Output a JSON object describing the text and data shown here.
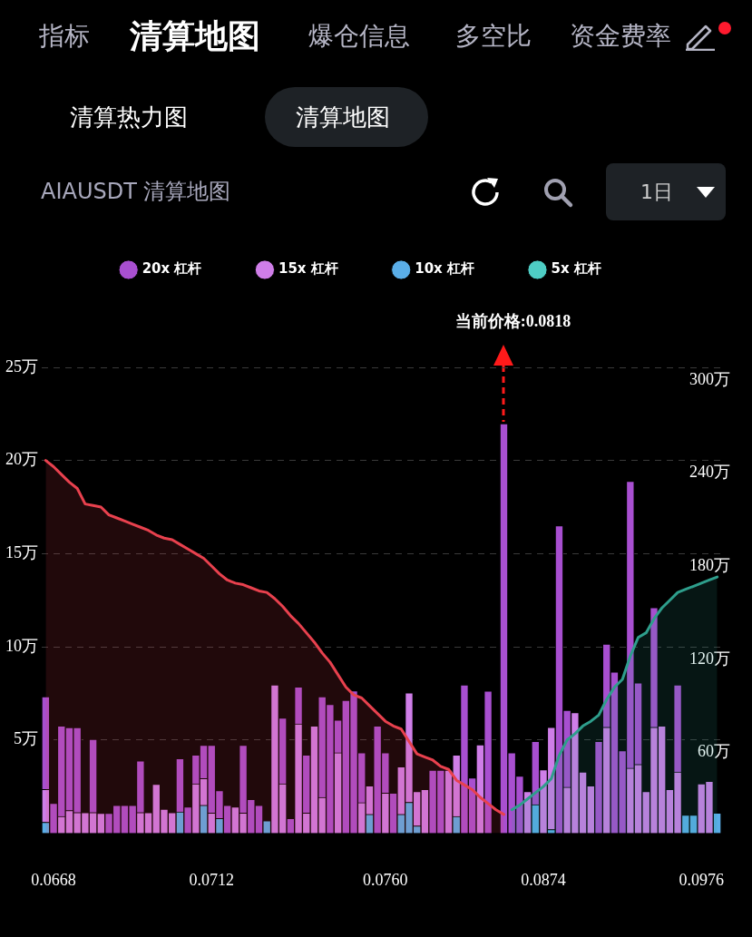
{
  "chart_data": {
    "type": "bar",
    "title": "AIAUSDT 清算地图",
    "stacked": true,
    "legend": "top",
    "grid": "y",
    "categories": [
      null,
      "0.0668",
      null,
      null,
      null,
      null,
      null,
      null,
      null,
      null,
      null,
      null,
      null,
      null,
      null,
      null,
      null,
      null,
      null,
      null,
      null,
      "0.0712",
      null,
      null,
      null,
      null,
      null,
      null,
      null,
      null,
      null,
      null,
      null,
      null,
      null,
      null,
      null,
      null,
      null,
      null,
      null,
      null,
      null,
      "0.0760",
      null,
      null,
      null,
      null,
      null,
      null,
      null,
      null,
      null,
      null,
      null,
      null,
      null,
      null,
      null,
      null,
      null,
      null,
      null,
      "0.0874",
      null,
      null,
      null,
      null,
      null,
      null,
      null,
      null,
      null,
      null,
      null,
      null,
      null,
      null,
      null,
      null,
      null,
      null,
      null,
      "0.0976",
      null,
      null
    ],
    "ylim": [
      0,
      25
    ],
    "yticks": [
      {
        "value": 5,
        "label": "5万"
      },
      {
        "value": 10,
        "label": "10万"
      },
      {
        "value": 15,
        "label": "15万"
      },
      {
        "value": 20,
        "label": "20万"
      },
      {
        "value": 25,
        "label": "25万"
      }
    ],
    "y2lim": [
      0,
      300
    ],
    "y2ticks": [
      {
        "value": 60,
        "label": "60万"
      },
      {
        "value": 120,
        "label": "120万"
      },
      {
        "value": 180,
        "label": "180万"
      },
      {
        "value": 240,
        "label": "240万"
      },
      {
        "value": 300,
        "label": "300万"
      }
    ],
    "annotations": [
      "指标",
      "清算地图",
      "爆仓信息",
      "多空比",
      "资金费率",
      "清算热力图",
      "清算地图",
      "1日",
      "当前价格:0.0818"
    ],
    "series": [
      {
        "name": "5x 杠杆",
        "color": "#4ecdc4",
        "values": [
          null,
          null,
          null,
          null,
          null,
          null,
          null,
          null,
          null,
          null,
          null,
          null,
          null,
          null,
          null,
          null,
          null,
          null,
          null,
          null,
          null,
          null,
          null,
          null,
          null,
          null,
          null,
          null,
          null,
          null,
          null,
          null,
          null,
          null,
          null,
          null,
          null,
          null,
          null,
          null,
          null,
          null,
          null,
          null,
          null,
          null,
          null,
          null,
          null,
          null,
          null,
          null,
          null,
          null,
          null,
          null,
          null,
          null,
          null,
          null,
          null,
          null,
          null,
          null,
          null,
          null,
          null,
          null,
          null,
          null,
          null,
          null,
          null,
          null,
          null,
          null,
          null,
          null,
          null,
          null,
          null,
          null,
          null,
          null,
          null,
          null
        ]
      },
      {
        "name": "10x 杠杆",
        "color": "#5aaee8",
        "values": [
          0.58,
          null,
          null,
          null,
          null,
          null,
          null,
          null,
          null,
          null,
          null,
          null,
          null,
          null,
          null,
          null,
          null,
          1.13,
          null,
          null,
          1.49,
          null,
          0.78,
          null,
          null,
          null,
          null,
          null,
          0.66,
          null,
          null,
          null,
          null,
          null,
          null,
          null,
          null,
          null,
          null,
          null,
          null,
          1.0,
          null,
          null,
          null,
          1.0,
          1.65,
          0.38,
          null,
          null,
          null,
          null,
          0.89,
          null,
          null,
          null,
          null,
          null,
          null,
          null,
          null,
          null,
          1.52,
          null,
          0.19,
          null,
          null,
          null,
          null,
          null,
          null,
          null,
          null,
          null,
          null,
          null,
          null,
          null,
          null,
          null,
          null,
          0.97,
          0.97,
          null,
          null,
          1.08
        ]
      },
      {
        "name": "15x 杠杆",
        "color": "#cf7ee8",
        "values": [
          1.76,
          null,
          0.89,
          1.21,
          1.1,
          1.1,
          1.1,
          1.06,
          null,
          null,
          null,
          null,
          1.1,
          1.1,
          2.62,
          1.28,
          1.1,
          null,
          null,
          2.65,
          1.44,
          1.08,
          null,
          null,
          1.4,
          1.08,
          null,
          null,
          null,
          7.95,
          2.65,
          null,
          5.86,
          1.08,
          5.75,
          1.91,
          null,
          4.31,
          null,
          null,
          1.63,
          1.54,
          null,
          2.15,
          null,
          2.56,
          5.88,
          1.85,
          2.34,
          null,
          null,
          3.37,
          3.3,
          null,
          null,
          4.74,
          null,
          null,
          null,
          null,
          null,
          2.23,
          null,
          3.4,
          5.49,
          null,
          2.46,
          6.47,
          3.28,
          2.54,
          null,
          5.68,
          null,
          null,
          3.48,
          3.68,
          2.23,
          5.68,
          5.75,
          2.34,
          3.28,
          null,
          null,
          2.65,
          2.78,
          null
        ]
      },
      {
        "name": "20x 杠杆",
        "color": "#a84fd0",
        "values": [
          4.98,
          1.6,
          4.86,
          4.46,
          4.57,
          null,
          3.93,
          null,
          1.06,
          1.49,
          1.49,
          1.49,
          2.77,
          null,
          null,
          null,
          null,
          2.87,
          1.4,
          1.54,
          1.79,
          3.64,
          1.5,
          1.49,
          null,
          3.64,
          1.8,
          1.49,
          null,
          null,
          3.53,
          0.78,
          1.98,
          3.11,
          null,
          5.41,
          6.9,
          1.76,
          7.12,
          7.64,
          2.68,
          null,
          5.75,
          2.16,
          2.15,
          null,
          null,
          null,
          null,
          3.37,
          3.37,
          null,
          null,
          7.95,
          2.96,
          null,
          7.63,
          null,
          21.98,
          4.31,
          3.06,
          null,
          3.4,
          null,
          null,
          16.5,
          4.13,
          null,
          null,
          null,
          4.92,
          4.47,
          8.65,
          4.42,
          15.4,
          4.38,
          null,
          6.42,
          null,
          null,
          4.67,
          null,
          null,
          null,
          null,
          null
        ]
      },
      {
        "type": "area",
        "axis": "y2",
        "color": "#e8414e",
        "values": [
          240,
          236,
          231,
          226,
          222,
          212,
          211,
          210,
          205,
          203,
          201,
          199,
          197,
          195,
          192,
          190,
          189,
          186,
          183,
          180,
          177,
          172,
          167,
          163,
          161,
          160,
          158,
          156,
          155,
          151,
          146,
          140,
          135,
          129,
          123,
          116,
          110,
          102,
          94,
          89,
          87,
          82,
          77,
          72,
          69,
          67,
          59,
          51,
          49,
          47,
          43,
          41,
          34,
          31,
          28,
          23,
          19,
          15,
          12,
          null,
          null,
          null,
          null,
          null,
          null,
          null,
          null,
          null,
          null,
          null,
          null,
          null,
          null,
          null,
          null,
          null,
          null,
          null,
          null,
          null,
          null,
          null,
          null,
          null,
          null,
          null
        ]
      },
      {
        "type": "area",
        "axis": "y2",
        "color": "#2e9e8c",
        "values": [
          null,
          null,
          null,
          null,
          null,
          null,
          null,
          null,
          null,
          null,
          null,
          null,
          null,
          null,
          null,
          null,
          null,
          null,
          null,
          null,
          null,
          null,
          null,
          null,
          null,
          null,
          null,
          null,
          null,
          null,
          null,
          null,
          null,
          null,
          null,
          null,
          null,
          null,
          null,
          null,
          null,
          null,
          null,
          null,
          null,
          null,
          null,
          null,
          null,
          null,
          null,
          null,
          null,
          null,
          null,
          null,
          null,
          null,
          null,
          15,
          18,
          22,
          26,
          30,
          35,
          50,
          60,
          64,
          69,
          72,
          76,
          86,
          94,
          99,
          114,
          126,
          129,
          138,
          145,
          150,
          155,
          157,
          159,
          161,
          163,
          165
        ]
      }
    ]
  }
}
